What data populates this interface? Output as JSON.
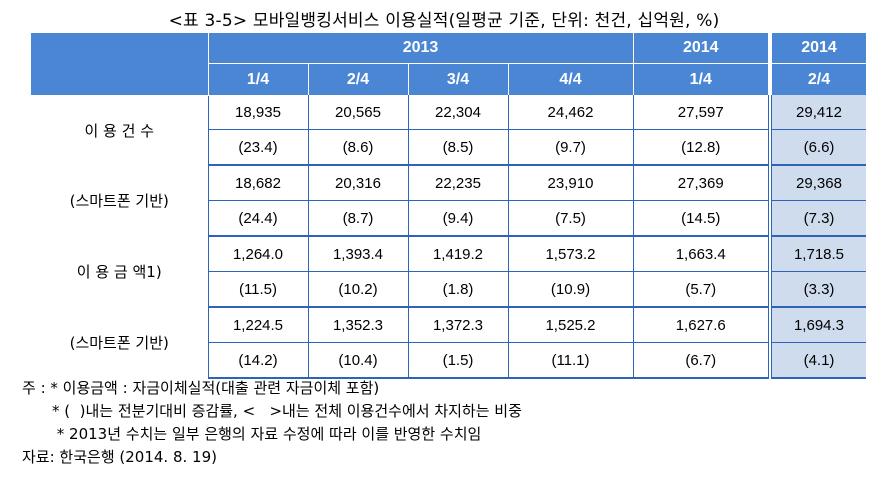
{
  "caption": "<표 3-5> 모바일뱅킹서비스 이용실적(일평균 기준, 단위: 천건, 십억원, %)",
  "header": {
    "years": [
      "2013",
      "2014",
      "2014"
    ],
    "quarters": [
      "1/4",
      "2/4",
      "3/4",
      "4/4",
      "1/4",
      "2/4"
    ]
  },
  "rows": [
    {
      "label": "이 용 건 수",
      "values": [
        "18,935",
        "20,565",
        "22,304",
        "24,462",
        "27,597",
        "29,412"
      ],
      "changes": [
        "(23.4)",
        "(8.6)",
        "(8.5)",
        "(9.7)",
        "(12.8)",
        "(6.6)"
      ]
    },
    {
      "label": "(스마트폰 기반)",
      "values": [
        "18,682",
        "20,316",
        "22,235",
        "23,910",
        "27,369",
        "29,368"
      ],
      "changes": [
        "(24.4)",
        "(8.7)",
        "(9.4)",
        "(7.5)",
        "(14.5)",
        "(7.3)"
      ]
    },
    {
      "label": "이 용 금 액1)",
      "values": [
        "1,264.0",
        "1,393.4",
        "1,419.2",
        "1,573.2",
        "1,663.4",
        "1,718.5"
      ],
      "changes": [
        "(11.5)",
        "(10.2)",
        "(1.8)",
        "(10.9)",
        "(5.7)",
        "(3.3)"
      ]
    },
    {
      "label": "(스마트폰 기반)",
      "values": [
        "1,224.5",
        "1,352.3",
        "1,372.3",
        "1,525.2",
        "1,627.6",
        "1,694.3"
      ],
      "changes": [
        "(14.2)",
        "(10.4)",
        "(1.5)",
        "(11.1)",
        "(6.7)",
        "(4.1)"
      ]
    }
  ],
  "notes": {
    "line1": "주 : * 이용금액 : 자금이체실적(대출 관련 자금이체 포함)",
    "line2": "* (  )내는 전분기대비 증감률, <   >내는 전체 이용건수에서 차지하는 비중",
    "line3": " * 2013년 수치는 일부 은행의 자료 수정에 따라 이를 반영한 수치임",
    "source": "자료: 한국은행 (2014. 8. 19)"
  },
  "colors": {
    "header_bg": "#4a86d4",
    "highlight_bg": "#cfdcee",
    "border": "#2e64b8"
  }
}
